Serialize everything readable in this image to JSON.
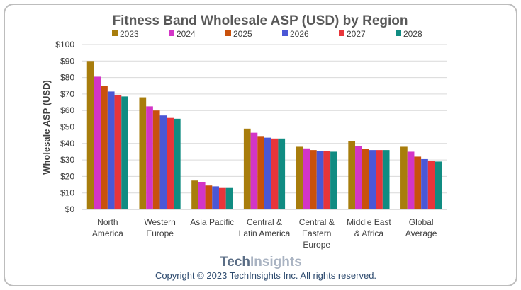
{
  "chart_data": {
    "type": "bar",
    "title": "Fitness Band Wholesale ASP (USD) by Region",
    "ylabel": "Wholesale ASP (USD)",
    "xlabel": "",
    "ylim": [
      0,
      100
    ],
    "yticks": [
      "$0",
      "$10",
      "$20",
      "$30",
      "$40",
      "$50",
      "$60",
      "$70",
      "$80",
      "$90",
      "$100"
    ],
    "legend_position": "top-center",
    "grid": true,
    "categories": [
      [
        "North",
        "America"
      ],
      [
        "Western",
        "Europe"
      ],
      [
        "Asia Pacific"
      ],
      [
        "Central &",
        "Latin America"
      ],
      [
        "Central &",
        "Eastern",
        "Europe"
      ],
      [
        "Middle East",
        "& Africa"
      ],
      [
        "Global",
        "Average"
      ]
    ],
    "series": [
      {
        "name": "2023",
        "color": "#a87d0c",
        "values": [
          90,
          68,
          17.5,
          49,
          38,
          41.5,
          38
        ]
      },
      {
        "name": "2024",
        "color": "#d335c7",
        "values": [
          80.5,
          62.5,
          16.5,
          46.5,
          37,
          38.5,
          35
        ]
      },
      {
        "name": "2025",
        "color": "#c9510c",
        "values": [
          75,
          60,
          14.5,
          44.5,
          36,
          36.5,
          32
        ]
      },
      {
        "name": "2026",
        "color": "#4b57d6",
        "values": [
          71.5,
          57,
          14,
          43.5,
          35.5,
          36,
          30.5
        ]
      },
      {
        "name": "2027",
        "color": "#e8353a",
        "values": [
          69.5,
          55.5,
          13,
          43,
          35.5,
          36,
          29.5
        ]
      },
      {
        "name": "2028",
        "color": "#108c82",
        "values": [
          68.5,
          55,
          13,
          43,
          35,
          36,
          29
        ]
      }
    ]
  },
  "footer": {
    "logo_tech": "Tech",
    "logo_insights": "Insights",
    "copyright": "Copyright © 2023 TechInsights Inc.  All rights reserved."
  }
}
